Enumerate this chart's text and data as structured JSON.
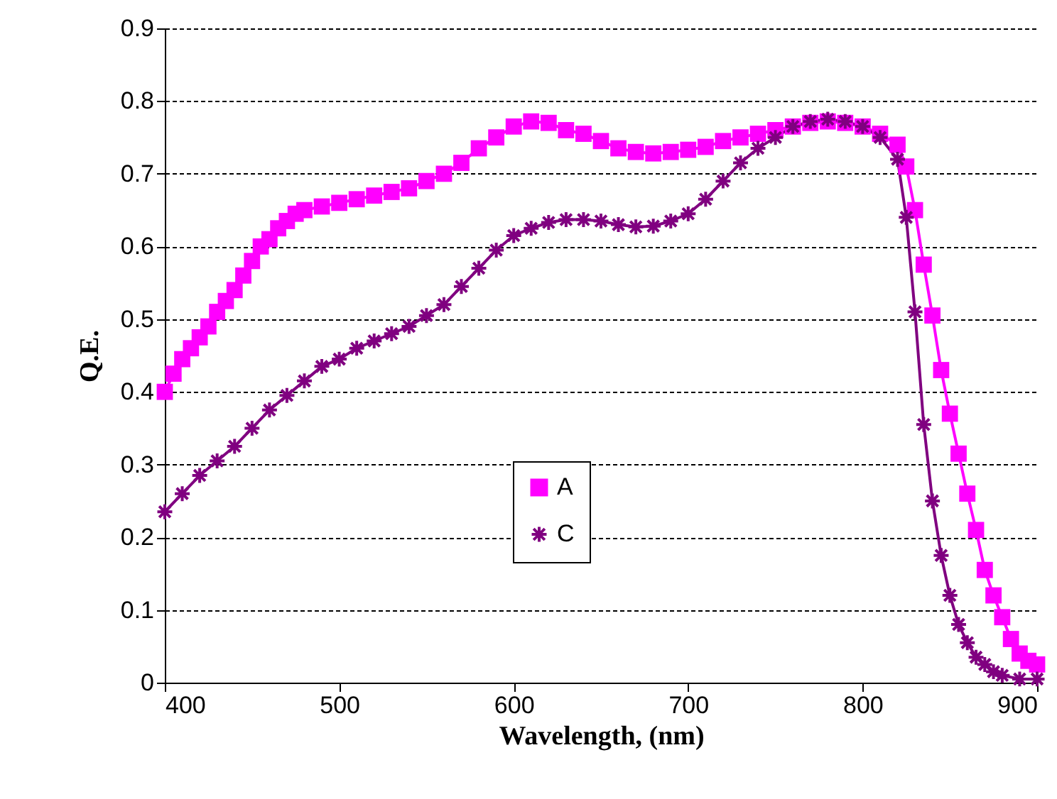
{
  "chart_data": {
    "type": "line",
    "xlabel": "Wavelength, (nm)",
    "ylabel": "Q.E.",
    "xlim": [
      400,
      900
    ],
    "xticks": [
      400,
      500,
      600,
      700,
      800,
      900
    ],
    "ylim": [
      0,
      0.9
    ],
    "yticks": [
      0,
      0.1,
      0.2,
      0.3,
      0.4,
      0.5,
      0.6,
      0.7,
      0.8,
      0.9
    ],
    "grid": "y",
    "legend": "bottom",
    "series": [
      {
        "name": "A",
        "color": "#ff00ff",
        "marker": "square",
        "x": [
          400,
          405,
          410,
          415,
          420,
          425,
          430,
          435,
          440,
          445,
          450,
          455,
          460,
          465,
          470,
          475,
          480,
          490,
          500,
          510,
          520,
          530,
          540,
          550,
          560,
          570,
          580,
          590,
          600,
          610,
          620,
          630,
          640,
          650,
          660,
          670,
          680,
          690,
          700,
          710,
          720,
          730,
          740,
          750,
          760,
          770,
          780,
          790,
          800,
          810,
          820,
          825,
          830,
          835,
          840,
          845,
          850,
          855,
          860,
          865,
          870,
          875,
          880,
          885,
          890,
          895,
          900
        ],
        "values": [
          0.4,
          0.425,
          0.445,
          0.46,
          0.475,
          0.49,
          0.51,
          0.525,
          0.54,
          0.56,
          0.58,
          0.6,
          0.61,
          0.625,
          0.635,
          0.645,
          0.65,
          0.655,
          0.66,
          0.665,
          0.67,
          0.675,
          0.68,
          0.69,
          0.7,
          0.715,
          0.735,
          0.75,
          0.765,
          0.772,
          0.77,
          0.76,
          0.755,
          0.745,
          0.735,
          0.73,
          0.728,
          0.73,
          0.733,
          0.737,
          0.745,
          0.75,
          0.755,
          0.76,
          0.765,
          0.77,
          0.772,
          0.77,
          0.765,
          0.755,
          0.74,
          0.71,
          0.65,
          0.575,
          0.505,
          0.43,
          0.37,
          0.315,
          0.26,
          0.21,
          0.155,
          0.12,
          0.09,
          0.06,
          0.04,
          0.03,
          0.025
        ]
      },
      {
        "name": "C",
        "color": "#800080",
        "marker": "cross",
        "x": [
          400,
          410,
          420,
          430,
          440,
          450,
          460,
          470,
          480,
          490,
          500,
          510,
          520,
          530,
          540,
          550,
          560,
          570,
          580,
          590,
          600,
          610,
          620,
          630,
          640,
          650,
          660,
          670,
          680,
          690,
          700,
          710,
          720,
          730,
          740,
          750,
          760,
          770,
          780,
          790,
          800,
          810,
          820,
          825,
          830,
          835,
          840,
          845,
          850,
          855,
          860,
          865,
          870,
          875,
          880,
          890,
          900
        ],
        "values": [
          0.235,
          0.26,
          0.285,
          0.305,
          0.325,
          0.35,
          0.375,
          0.395,
          0.415,
          0.435,
          0.445,
          0.46,
          0.47,
          0.48,
          0.49,
          0.505,
          0.52,
          0.545,
          0.57,
          0.595,
          0.615,
          0.625,
          0.633,
          0.637,
          0.637,
          0.635,
          0.63,
          0.627,
          0.628,
          0.635,
          0.645,
          0.665,
          0.69,
          0.715,
          0.735,
          0.75,
          0.765,
          0.772,
          0.775,
          0.772,
          0.765,
          0.75,
          0.72,
          0.64,
          0.51,
          0.355,
          0.25,
          0.175,
          0.12,
          0.08,
          0.055,
          0.035,
          0.025,
          0.015,
          0.01,
          0.005,
          0.005
        ]
      }
    ]
  }
}
